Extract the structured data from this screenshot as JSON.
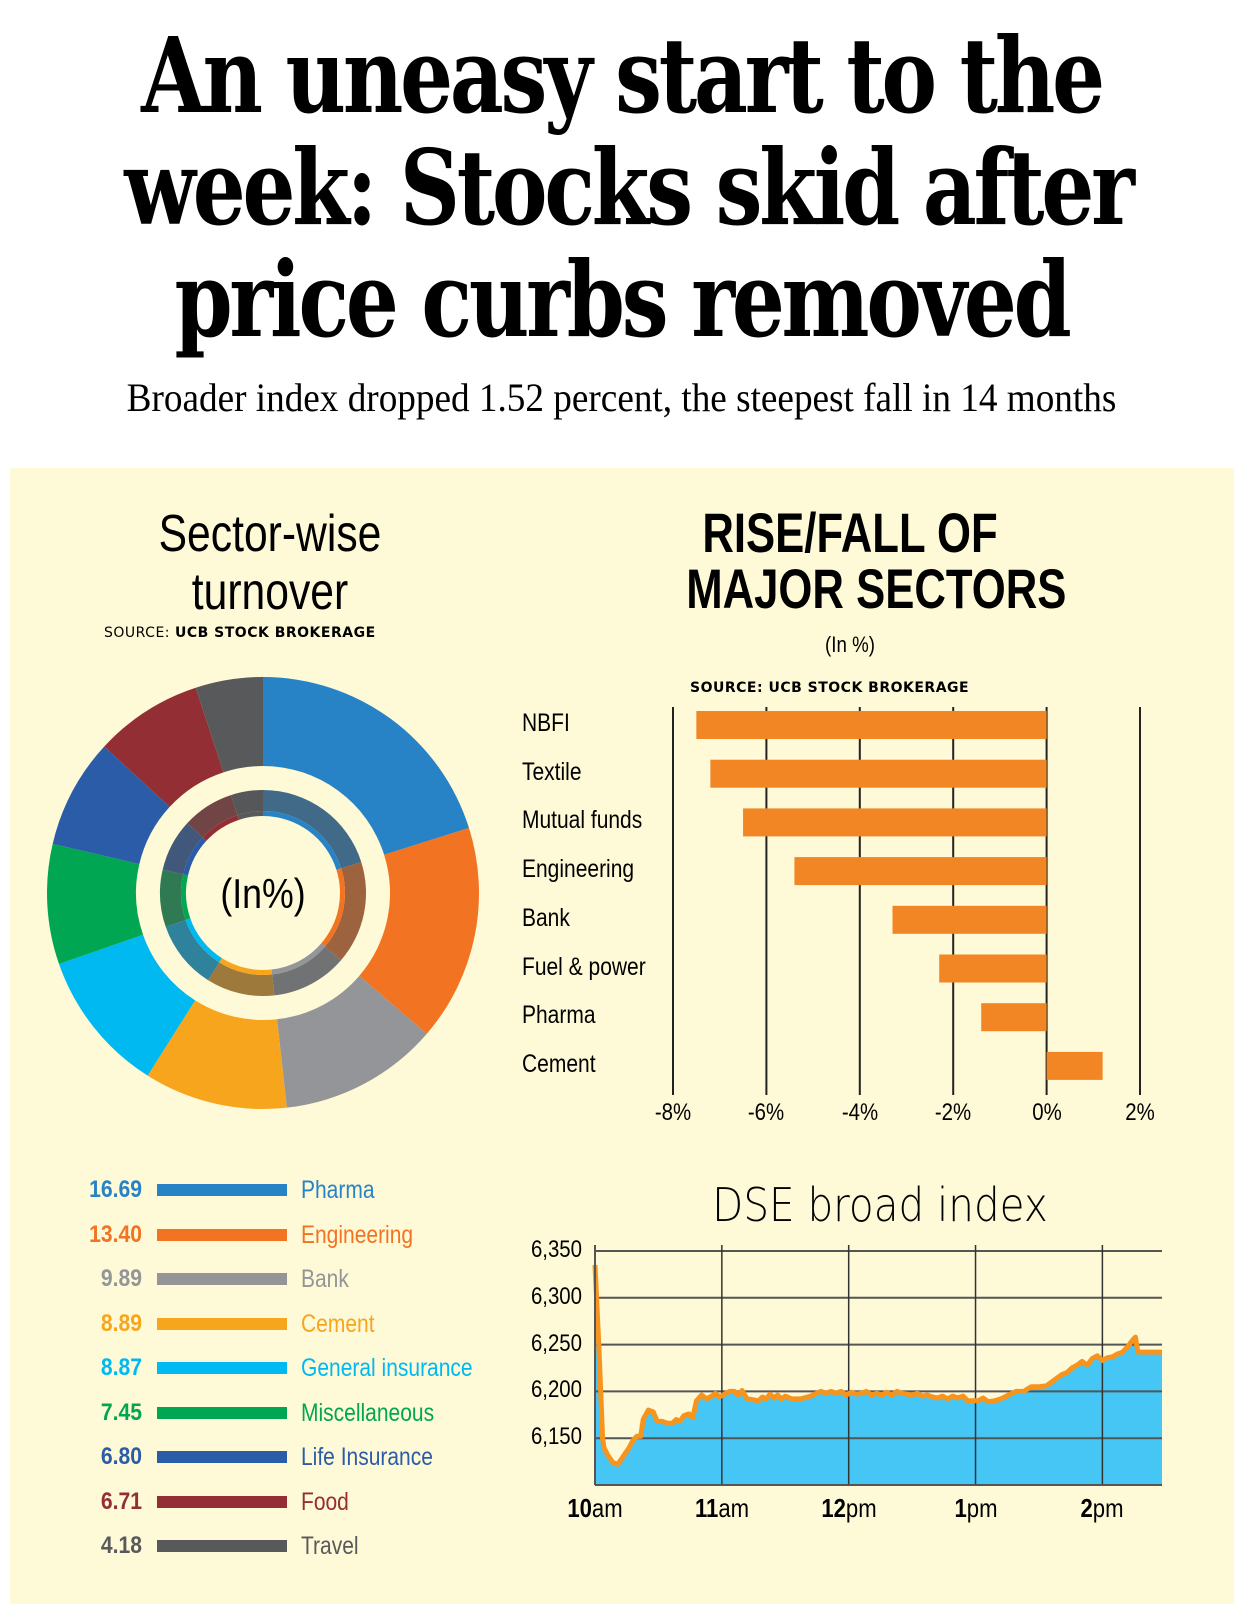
{
  "headline": {
    "lines": [
      "An uneasy start to the",
      "week: Stocks skid after",
      "price curbs removed"
    ],
    "subhead": "Broader index dropped 1.52 percent, the steepest fall in 14 months"
  },
  "panel_background": "#fef9d6",
  "chart_data": [
    {
      "type": "pie",
      "variant": "donut",
      "title": "Sector-wise turnover",
      "source_label": "SOURCE:",
      "source_name": "UCB STOCK BROKERAGE",
      "center_label": "(In%)",
      "unit": "%",
      "slices": [
        {
          "label": "Pharma",
          "value": 16.69,
          "display": "16.69",
          "color": "#2783c6"
        },
        {
          "label": "Engineering",
          "value": 13.4,
          "display": "13.40",
          "color": "#f27321"
        },
        {
          "label": "Bank",
          "value": 9.89,
          "display": "9.89",
          "color": "#939598"
        },
        {
          "label": "Cement",
          "value": 8.89,
          "display": "8.89",
          "color": "#f8a51e"
        },
        {
          "label": "General insurance",
          "value": 8.87,
          "display": "8.87",
          "color": "#00b9f1"
        },
        {
          "label": "Miscellaneous",
          "value": 7.45,
          "display": "7.45",
          "color": "#00a651"
        },
        {
          "label": "Life Insurance",
          "value": 6.8,
          "display": "6.80",
          "color": "#2b5ca8"
        },
        {
          "label": "Food",
          "value": 6.71,
          "display": "6.71",
          "color": "#932f34"
        },
        {
          "label": "Travel",
          "value": 4.18,
          "display": "4.18",
          "color": "#58595b"
        }
      ]
    },
    {
      "type": "bar",
      "orientation": "horizontal",
      "title": "RISE/FALL OF MAJOR SECTORS",
      "title_lines": [
        "RISE/FALL OF",
        "MAJOR SECTORS"
      ],
      "unit_label": "(In %)",
      "source_label": "SOURCE:",
      "source_name": "UCB STOCK BROKERAGE",
      "categories": [
        "NBFI",
        "Textile",
        "Mutual funds",
        "Engineering",
        "Bank",
        "Fuel & power",
        "Pharma",
        "Cement"
      ],
      "values": [
        -7.5,
        -7.2,
        -6.5,
        -5.4,
        -3.3,
        -2.3,
        -1.4,
        1.2
      ],
      "bar_color": "#f28624",
      "xlim": [
        -8,
        2
      ],
      "xticks": [
        -8,
        -6,
        -4,
        -2,
        0,
        2
      ],
      "xtick_labels": [
        "-8%",
        "-6%",
        "-4%",
        "-2%",
        "0%",
        "2%"
      ],
      "grid": "vertical"
    },
    {
      "type": "area",
      "title": "DSE broad index",
      "line_color": "#f7941d",
      "fill_color": "#45c6f5",
      "ylim": [
        6100,
        6350
      ],
      "yticks": [
        6150,
        6200,
        6250,
        6300,
        6350
      ],
      "ytick_labels": [
        "6,150",
        "6,200",
        "6,250",
        "6,300",
        "6,350"
      ],
      "xlim_hours": [
        10.0,
        14.47
      ],
      "xticks_hours": [
        10,
        11,
        12,
        13,
        14
      ],
      "xtick_labels": [
        {
          "num": "10",
          "suffix": "am"
        },
        {
          "num": "11",
          "suffix": "am"
        },
        {
          "num": "12",
          "suffix": "pm"
        },
        {
          "num": "1",
          "suffix": "pm"
        },
        {
          "num": "2",
          "suffix": "pm"
        }
      ],
      "grid": "both",
      "points": [
        [
          10.0,
          6335
        ],
        [
          10.03,
          6250
        ],
        [
          10.06,
          6150
        ],
        [
          10.07,
          6140
        ],
        [
          10.1,
          6132
        ],
        [
          10.14,
          6124
        ],
        [
          10.18,
          6122
        ],
        [
          10.22,
          6130
        ],
        [
          10.27,
          6140
        ],
        [
          10.3,
          6148
        ],
        [
          10.33,
          6152
        ],
        [
          10.36,
          6152
        ],
        [
          10.38,
          6170
        ],
        [
          10.42,
          6180
        ],
        [
          10.46,
          6178
        ],
        [
          10.49,
          6168
        ],
        [
          10.53,
          6168
        ],
        [
          10.57,
          6166
        ],
        [
          10.61,
          6166
        ],
        [
          10.64,
          6170
        ],
        [
          10.67,
          6168
        ],
        [
          10.7,
          6174
        ],
        [
          10.74,
          6176
        ],
        [
          10.77,
          6172
        ],
        [
          10.8,
          6190
        ],
        [
          10.84,
          6196
        ],
        [
          10.88,
          6192
        ],
        [
          10.92,
          6195
        ],
        [
          10.95,
          6198
        ],
        [
          10.98,
          6194
        ],
        [
          11.02,
          6197
        ],
        [
          11.06,
          6200
        ],
        [
          11.1,
          6200
        ],
        [
          11.13,
          6196
        ],
        [
          11.16,
          6201
        ],
        [
          11.2,
          6192
        ],
        [
          11.25,
          6191
        ],
        [
          11.29,
          6190
        ],
        [
          11.32,
          6194
        ],
        [
          11.35,
          6192
        ],
        [
          11.38,
          6197
        ],
        [
          11.41,
          6193
        ],
        [
          11.44,
          6196
        ],
        [
          11.47,
          6192
        ],
        [
          11.5,
          6195
        ],
        [
          11.55,
          6192
        ],
        [
          11.62,
          6192
        ],
        [
          11.7,
          6195
        ],
        [
          11.78,
          6200
        ],
        [
          11.82,
          6198
        ],
        [
          11.86,
          6200
        ],
        [
          11.9,
          6198
        ],
        [
          11.94,
          6200
        ],
        [
          11.98,
          6196
        ],
        [
          12.02,
          6199
        ],
        [
          12.06,
          6197
        ],
        [
          12.1,
          6198
        ],
        [
          12.14,
          6200
        ],
        [
          12.18,
          6196
        ],
        [
          12.22,
          6198
        ],
        [
          12.26,
          6196
        ],
        [
          12.3,
          6199
        ],
        [
          12.34,
          6196
        ],
        [
          12.38,
          6200
        ],
        [
          12.42,
          6198
        ],
        [
          12.46,
          6197
        ],
        [
          12.5,
          6196
        ],
        [
          12.54,
          6198
        ],
        [
          12.58,
          6195
        ],
        [
          12.62,
          6196
        ],
        [
          12.66,
          6194
        ],
        [
          12.7,
          6193
        ],
        [
          12.74,
          6195
        ],
        [
          12.78,
          6192
        ],
        [
          12.82,
          6195
        ],
        [
          12.86,
          6193
        ],
        [
          12.9,
          6195
        ],
        [
          12.94,
          6190
        ],
        [
          12.98,
          6190
        ],
        [
          13.02,
          6190
        ],
        [
          13.06,
          6193
        ],
        [
          13.1,
          6189
        ],
        [
          13.15,
          6190
        ],
        [
          13.2,
          6192
        ],
        [
          13.26,
          6196
        ],
        [
          13.32,
          6200
        ],
        [
          13.38,
          6200
        ],
        [
          13.44,
          6205
        ],
        [
          13.5,
          6205
        ],
        [
          13.56,
          6206
        ],
        [
          13.62,
          6212
        ],
        [
          13.68,
          6218
        ],
        [
          13.72,
          6220
        ],
        [
          13.76,
          6225
        ],
        [
          13.8,
          6228
        ],
        [
          13.84,
          6232
        ],
        [
          13.88,
          6228
        ],
        [
          13.92,
          6235
        ],
        [
          13.96,
          6238
        ],
        [
          14.0,
          6233
        ],
        [
          14.04,
          6236
        ],
        [
          14.08,
          6237
        ],
        [
          14.12,
          6240
        ],
        [
          14.16,
          6242
        ],
        [
          14.2,
          6248
        ],
        [
          14.24,
          6255
        ],
        [
          14.26,
          6258
        ],
        [
          14.28,
          6242
        ],
        [
          14.35,
          6242
        ],
        [
          14.47,
          6242
        ]
      ]
    }
  ]
}
